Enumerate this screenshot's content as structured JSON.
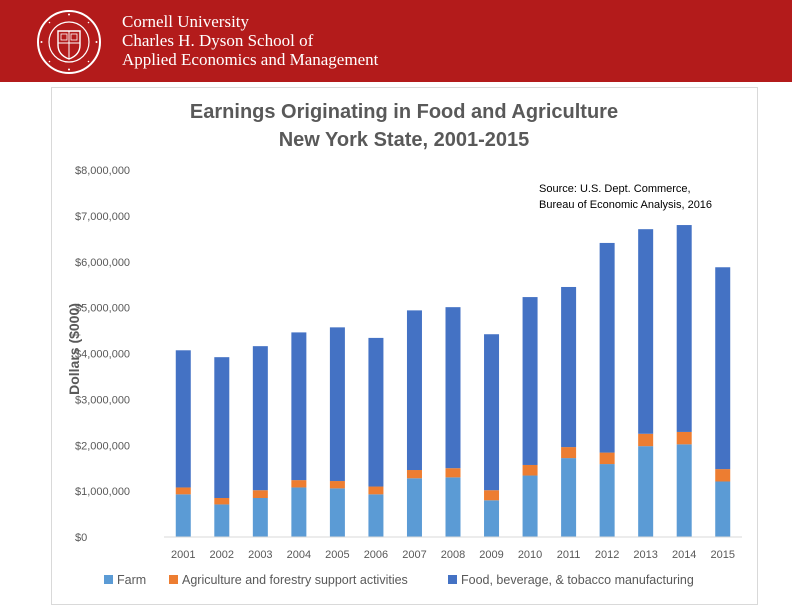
{
  "header": {
    "line1": "Cornell University",
    "line2": "Charles H. Dyson School of",
    "line3": "Applied Economics and Management",
    "bg_color": "#b31b1b",
    "seal_text": "CORNELL UNIVERSITY FOUNDED A.D. 1865"
  },
  "chart_data": {
    "type": "bar",
    "stacked": true,
    "title": [
      "Earnings Originating in Food and Agriculture",
      "New York State, 2001-2015"
    ],
    "ylabel": "Dollars ($000)",
    "xlabel": "",
    "ylim": [
      0,
      8000000
    ],
    "yticks": [
      "$0",
      "$1,000,000",
      "$2,000,000",
      "$3,000,000",
      "$4,000,000",
      "$5,000,000",
      "$6,000,000",
      "$7,000,000",
      "$8,000,000"
    ],
    "grid": false,
    "legend_position": "bottom",
    "categories": [
      "2001",
      "2002",
      "2003",
      "2004",
      "2005",
      "2006",
      "2007",
      "2008",
      "2009",
      "2010",
      "2011",
      "2012",
      "2013",
      "2014",
      "2015"
    ],
    "series": [
      {
        "name": "Farm",
        "color": "#5b9bd5",
        "values": [
          930000,
          710000,
          850000,
          1080000,
          1060000,
          930000,
          1280000,
          1300000,
          800000,
          1340000,
          1720000,
          1590000,
          1980000,
          2020000,
          1210000
        ]
      },
      {
        "name": "Agriculture and forestry support activities",
        "color": "#ed7d31",
        "values": [
          150000,
          140000,
          170000,
          160000,
          160000,
          170000,
          180000,
          200000,
          220000,
          230000,
          240000,
          250000,
          270000,
          270000,
          270000
        ]
      },
      {
        "name": "Food, beverage, & tobacco manufacturing",
        "color": "#4472c4",
        "values": [
          2990000,
          3070000,
          3140000,
          3220000,
          3350000,
          3240000,
          3480000,
          3510000,
          3400000,
          3660000,
          3490000,
          4570000,
          4460000,
          4510000,
          4400000
        ]
      }
    ],
    "annotation": [
      "Source: U.S. Dept. Commerce,",
      "Bureau of Economic Analysis, 2016"
    ]
  }
}
